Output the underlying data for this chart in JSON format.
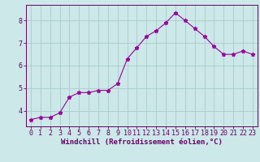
{
  "x": [
    0,
    1,
    2,
    3,
    4,
    5,
    6,
    7,
    8,
    9,
    10,
    11,
    12,
    13,
    14,
    15,
    16,
    17,
    18,
    19,
    20,
    21,
    22,
    23
  ],
  "y": [
    3.6,
    3.7,
    3.7,
    3.9,
    4.6,
    4.8,
    4.8,
    4.9,
    4.9,
    5.2,
    6.3,
    6.8,
    7.3,
    7.55,
    7.9,
    8.35,
    8.0,
    7.65,
    7.3,
    6.85,
    6.5,
    6.5,
    6.65,
    6.5
  ],
  "line_color": "#990099",
  "marker": "*",
  "marker_size": 3.5,
  "bg_color": "#cce8e8",
  "grid_color": "#aacccc",
  "xlabel": "Windchill (Refroidissement éolien,°C)",
  "xlabel_color": "#660066",
  "xtick_labels": [
    "0",
    "1",
    "2",
    "3",
    "4",
    "5",
    "6",
    "7",
    "8",
    "9",
    "10",
    "11",
    "12",
    "13",
    "14",
    "15",
    "16",
    "17",
    "18",
    "19",
    "20",
    "21",
    "22",
    "23"
  ],
  "ytick_vals": [
    4,
    5,
    6,
    7,
    8
  ],
  "ylim": [
    3.3,
    8.7
  ],
  "xlim": [
    -0.5,
    23.5
  ],
  "tick_color": "#660066",
  "spine_color": "#660066",
  "font_size_label": 6.5,
  "font_size_tick": 6.0
}
